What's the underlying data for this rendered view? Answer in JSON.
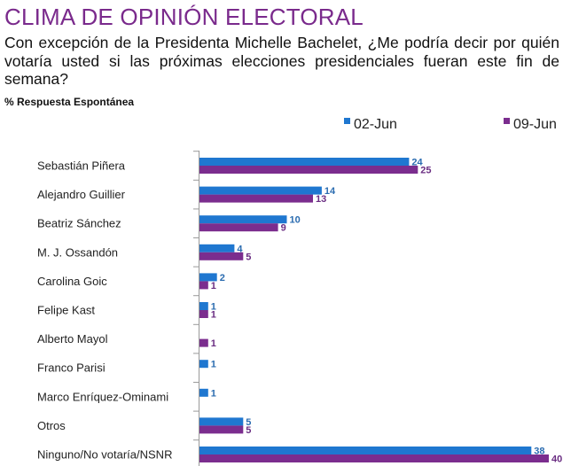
{
  "header": {
    "title": "CLIMA DE OPINIÓN ELECTORAL",
    "question": "Con excepción de la Presidenta Michelle Bachelet, ¿Me podría decir por quién votaría usted si las próximas elecciones presidenciales fueran este fin de semana?",
    "subtitle": "% Respuesta Espontánea"
  },
  "colors": {
    "series_a": "#1f77d0",
    "series_b": "#7b2d8e",
    "title": "#7a2a8c"
  },
  "chart_data": {
    "type": "bar",
    "orientation": "horizontal",
    "categories": [
      "Sebastián Piñera",
      "Alejandro  Guillier",
      "Beatriz Sánchez",
      "M. J. Ossandón",
      "Carolina Goic",
      "Felipe Kast",
      "Alberto Mayol",
      "Franco Parisi",
      "Marco Enríquez-Ominami",
      "Otros",
      "Ninguno/No votaría/NSNR"
    ],
    "series": [
      {
        "name": "02-Jun",
        "values": [
          24,
          14,
          10,
          4,
          2,
          1,
          null,
          1,
          1,
          5,
          38
        ]
      },
      {
        "name": "09-Jun",
        "values": [
          25,
          13,
          9,
          5,
          1,
          1,
          1,
          null,
          null,
          5,
          40
        ]
      }
    ],
    "xlim": [
      0,
      40
    ],
    "legend": "top-right",
    "grid": false
  }
}
